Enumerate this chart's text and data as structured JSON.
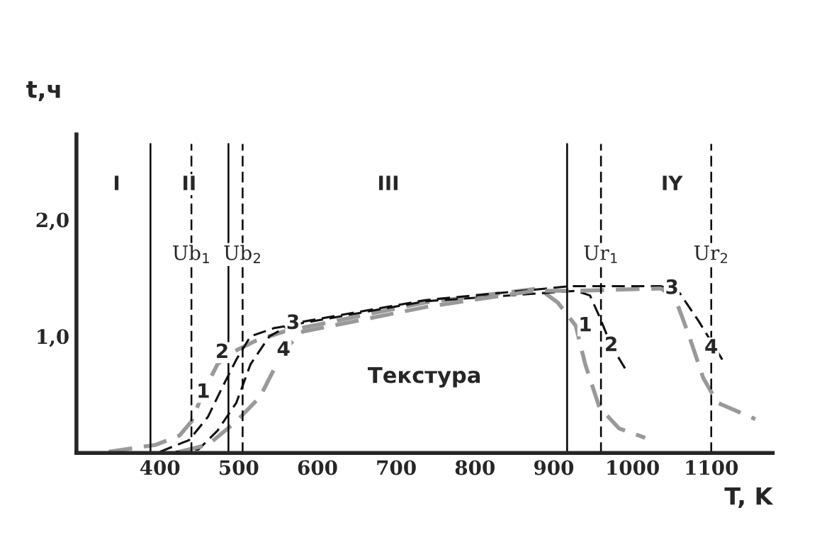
{
  "chart_data": {
    "type": "line",
    "xlabel": "T, K",
    "ylabel": "t,ч",
    "xlim": [
      294,
      1178
    ],
    "ylim": [
      0,
      2.73
    ],
    "xticks": [
      400,
      500,
      600,
      700,
      800,
      900,
      1000,
      1100
    ],
    "yticks": [
      {
        "value": 1,
        "label": "1,0"
      },
      {
        "value": 2,
        "label": "2,0"
      }
    ],
    "marker": "none",
    "line_style": "dashed",
    "series": [
      {
        "color": "#999999",
        "x": [
          335,
          395,
          425,
          440,
          455,
          473,
          491,
          521,
          557,
          737,
          881,
          905,
          928,
          940,
          958,
          983,
          1016
        ],
        "values": [
          0.01,
          0.07,
          0.15,
          0.27,
          0.52,
          0.76,
          0.86,
          0.96,
          1.04,
          1.29,
          1.41,
          1.29,
          1.09,
          0.76,
          0.39,
          0.21,
          0.13
        ]
      },
      {
        "color": "#111111",
        "x": [
          400,
          437,
          461,
          479,
          497,
          515,
          545,
          737,
          928,
          946,
          958,
          973,
          991
        ],
        "values": [
          0.01,
          0.11,
          0.31,
          0.56,
          0.8,
          1.0,
          1.07,
          1.3,
          1.39,
          1.35,
          1.17,
          0.92,
          0.72
        ]
      },
      {
        "color": "#111111",
        "x": [
          420,
          449,
          473,
          497,
          515,
          539,
          569,
          737,
          922,
          1036,
          1060,
          1084,
          1114
        ],
        "values": [
          0.01,
          0.03,
          0.19,
          0.43,
          0.76,
          1.0,
          1.11,
          1.31,
          1.43,
          1.43,
          1.37,
          1.13,
          0.8
        ]
      },
      {
        "color": "#999999",
        "x": [
          425,
          461,
          497,
          527,
          557,
          581,
          737,
          875,
          928,
          1036,
          1054,
          1072,
          1090,
          1108,
          1156
        ],
        "values": [
          0.01,
          0.07,
          0.27,
          0.48,
          0.88,
          1.04,
          1.25,
          1.39,
          1.39,
          1.41,
          1.33,
          1.0,
          0.64,
          0.43,
          0.29
        ]
      }
    ],
    "ref_lines": [
      {
        "axis": "x",
        "value": 388,
        "line_style": "solid",
        "color": "#000000"
      },
      {
        "axis": "x",
        "value": 487,
        "line_style": "solid",
        "color": "#000000"
      },
      {
        "axis": "x",
        "value": 917,
        "line_style": "solid",
        "color": "#000000"
      },
      {
        "axis": "x",
        "value": 440,
        "label": "Ub$_{1}$",
        "line_style": "dashed",
        "color": "#000000"
      },
      {
        "axis": "x",
        "value": 505,
        "label": "Ub$_{2}$",
        "line_style": "dashed",
        "color": "#000000"
      },
      {
        "axis": "x",
        "value": 960,
        "label": "Ur$_{1}$",
        "line_style": "dashed",
        "color": "#000000"
      },
      {
        "axis": "x",
        "value": 1100,
        "label": "Ur$_{2}$",
        "line_style": "dashed",
        "color": "#000000"
      }
    ],
    "annotations": [
      {
        "text": "I",
        "x": 345,
        "y": 2.3
      },
      {
        "text": "II",
        "x": 437,
        "y": 2.3
      },
      {
        "text": "III",
        "x": 690,
        "y": 2.3
      },
      {
        "text": "IY",
        "x": 1050,
        "y": 2.3
      },
      "Текстура",
      {
        "text": "1",
        "x": 455,
        "y": 0.52
      },
      {
        "text": "2",
        "x": 479,
        "y": 0.86
      },
      {
        "text": "3",
        "x": 569,
        "y": 1.11
      },
      {
        "text": "4",
        "x": 557,
        "y": 0.88
      },
      {
        "text": "1",
        "x": 940,
        "y": 1.09
      },
      {
        "text": "2",
        "x": 973,
        "y": 0.92
      },
      {
        "text": "3",
        "x": 1050,
        "y": 1.41
      },
      {
        "text": "4",
        "x": 1100,
        "y": 0.9
      }
    ]
  }
}
